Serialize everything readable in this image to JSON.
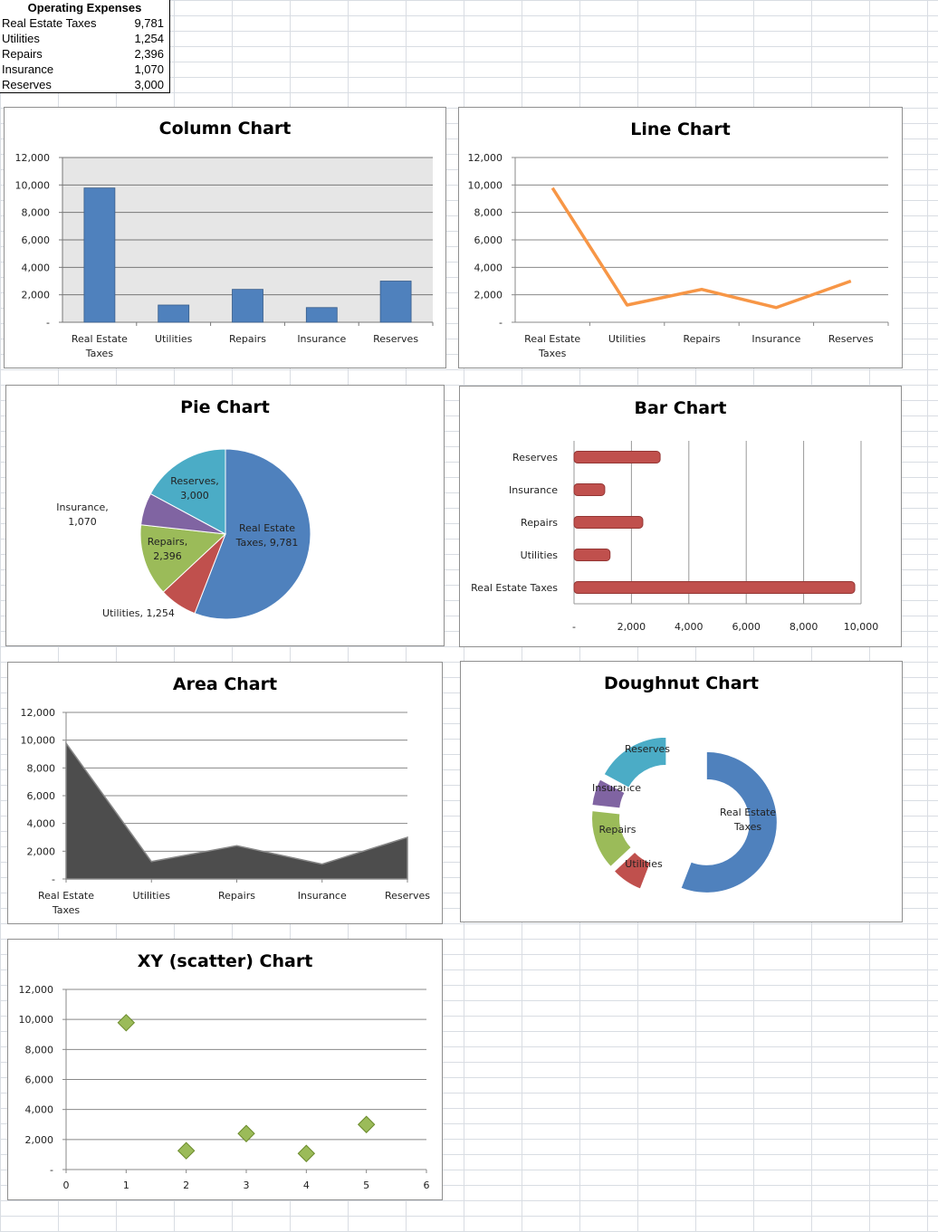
{
  "table": {
    "header": "Operating Expenses",
    "rows": [
      {
        "label": "Real Estate Taxes",
        "value": "9,781"
      },
      {
        "label": "Utilities",
        "value": "1,254"
      },
      {
        "label": "Repairs",
        "value": "2,396"
      },
      {
        "label": "Insurance",
        "value": "1,070"
      },
      {
        "label": "Reserves",
        "value": "3,000"
      }
    ]
  },
  "chart_data": [
    {
      "id": "column",
      "type": "bar",
      "orientation": "vertical",
      "title": "Column Chart",
      "categories": [
        "Real Estate Taxes",
        "Utilities",
        "Repairs",
        "Insurance",
        "Reserves"
      ],
      "values": [
        9781,
        1254,
        2396,
        1070,
        3000
      ],
      "ylim": [
        0,
        12000
      ],
      "yticks": [
        "-",
        "2,000",
        "4,000",
        "6,000",
        "8,000",
        "10,000",
        "12,000"
      ],
      "color": "#4f81bd",
      "plot_background": "#e6e6e6",
      "grid": true,
      "legend": "none"
    },
    {
      "id": "line",
      "type": "line",
      "title": "Line Chart",
      "categories": [
        "Real Estate Taxes",
        "Utilities",
        "Repairs",
        "Insurance",
        "Reserves"
      ],
      "values": [
        9781,
        1254,
        2396,
        1070,
        3000
      ],
      "ylim": [
        0,
        12000
      ],
      "yticks": [
        "-",
        "2,000",
        "4,000",
        "6,000",
        "8,000",
        "10,000",
        "12,000"
      ],
      "color": "#f79646",
      "grid": true,
      "legend": "none"
    },
    {
      "id": "pie",
      "type": "pie",
      "title": "Pie Chart",
      "categories": [
        "Real Estate Taxes",
        "Utilities",
        "Repairs",
        "Insurance",
        "Reserves"
      ],
      "values": [
        9781,
        1254,
        2396,
        1070,
        3000
      ],
      "data_labels": [
        [
          "Real Estate",
          "Taxes, 9,781"
        ],
        [
          "Utilities, 1,254"
        ],
        [
          "Repairs,",
          "2,396"
        ],
        [
          "Insurance,",
          "1,070"
        ],
        [
          "Reserves,",
          "3,000"
        ]
      ],
      "colors": [
        "#4f81bd",
        "#c0504d",
        "#9bbb59",
        "#8064a2",
        "#4bacc6"
      ]
    },
    {
      "id": "bar",
      "type": "bar",
      "orientation": "horizontal",
      "title": "Bar Chart",
      "categories": [
        "Real Estate Taxes",
        "Utilities",
        "Repairs",
        "Insurance",
        "Reserves"
      ],
      "values": [
        9781,
        1254,
        2396,
        1070,
        3000
      ],
      "xlim": [
        0,
        10000
      ],
      "xticks": [
        "-",
        "2,000",
        "4,000",
        "6,000",
        "8,000",
        "10,000"
      ],
      "color": "#c0504d",
      "grid": true,
      "legend": "none"
    },
    {
      "id": "area",
      "type": "area",
      "title": "Area Chart",
      "categories": [
        "Real Estate Taxes",
        "Utilities",
        "Repairs",
        "Insurance",
        "Reserves"
      ],
      "values": [
        9781,
        1254,
        2396,
        1070,
        3000
      ],
      "ylim": [
        0,
        12000
      ],
      "yticks": [
        "-",
        "2,000",
        "4,000",
        "6,000",
        "8,000",
        "10,000",
        "12,000"
      ],
      "color": "#4d4d4d",
      "grid": true,
      "legend": "none"
    },
    {
      "id": "doughnut",
      "type": "pie",
      "variant": "doughnut",
      "title": "Doughnut Chart",
      "categories": [
        "Real Estate Taxes",
        "Utilities",
        "Repairs",
        "Insurance",
        "Reserves"
      ],
      "values": [
        9781,
        1254,
        2396,
        1070,
        3000
      ],
      "data_labels": [
        [
          "Real Estate",
          "Taxes"
        ],
        [
          "Utilities"
        ],
        [
          "Repairs"
        ],
        [
          "Insurance"
        ],
        [
          "Reserves"
        ]
      ],
      "colors": [
        "#4f81bd",
        "#c0504d",
        "#9bbb59",
        "#8064a2",
        "#4bacc6"
      ]
    },
    {
      "id": "scatter",
      "type": "scatter",
      "title": "XY (scatter) Chart",
      "x": [
        1,
        2,
        3,
        4,
        5
      ],
      "y": [
        9781,
        1254,
        2396,
        1070,
        3000
      ],
      "xlim": [
        0,
        6
      ],
      "ylim": [
        0,
        12000
      ],
      "xticks": [
        "0",
        "1",
        "2",
        "3",
        "4",
        "5",
        "6"
      ],
      "yticks": [
        "-",
        "2,000",
        "4,000",
        "6,000",
        "8,000",
        "10,000",
        "12,000"
      ],
      "color": "#9bbb59",
      "grid": true,
      "legend": "none"
    }
  ]
}
